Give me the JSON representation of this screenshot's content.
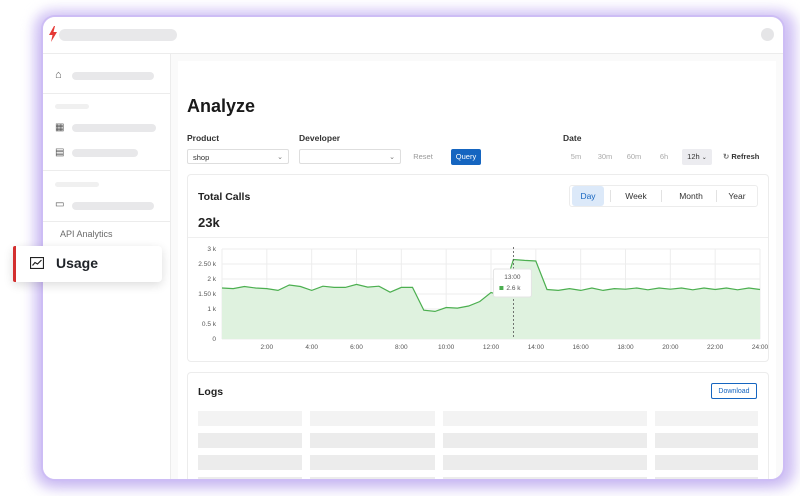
{
  "sidebar": {
    "section_label": "API Analytics",
    "usage_label": "Usage"
  },
  "page": {
    "title": "Analyze"
  },
  "filters": {
    "product_label": "Product",
    "product_value": "shop",
    "developer_label": "Developer",
    "developer_value": "",
    "reset_label": "Reset",
    "query_label": "Query",
    "date_label": "Date",
    "ranges": [
      "5m",
      "30m",
      "60m",
      "6h",
      "12h"
    ],
    "active_range": "12h",
    "refresh_label": "Refresh"
  },
  "total_calls": {
    "title": "Total Calls",
    "value": "23k",
    "periods": [
      "Day",
      "Week",
      "Month",
      "Year"
    ],
    "active_period": "Day",
    "tooltip_time": "13:00",
    "tooltip_value": "2.6 k"
  },
  "chart_data": {
    "type": "area",
    "y_ticks": [
      "0",
      "0.5 k",
      "1 k",
      "1.50 k",
      "2 k",
      "2.50 k",
      "3 k"
    ],
    "ylim": [
      0,
      3000
    ],
    "x_ticks": [
      "2:00",
      "4:00",
      "6:00",
      "8:00",
      "10:00",
      "12:00",
      "14:00",
      "16:00",
      "18:00",
      "20:00",
      "22:00",
      "24:00"
    ],
    "xlim": [
      0,
      24
    ],
    "grid": true,
    "color": "#4caf50",
    "x": [
      0,
      0.5,
      1,
      1.5,
      2,
      2.5,
      3,
      3.5,
      4,
      4.5,
      5,
      5.5,
      6,
      6.5,
      7,
      7.5,
      8,
      8.5,
      9,
      9.5,
      10,
      10.5,
      11,
      11.5,
      12,
      12.5,
      13,
      13.5,
      14,
      14.5,
      15,
      15.5,
      16,
      16.5,
      17,
      17.5,
      18,
      18.5,
      19,
      19.5,
      20,
      20.5,
      21,
      21.5,
      22,
      22.5,
      23,
      23.5,
      24
    ],
    "y": [
      1700,
      1680,
      1750,
      1700,
      1680,
      1620,
      1800,
      1750,
      1620,
      1760,
      1720,
      1720,
      1820,
      1730,
      1760,
      1560,
      1720,
      1720,
      960,
      920,
      1050,
      1030,
      1100,
      1250,
      1550,
      1450,
      2650,
      2620,
      2600,
      1650,
      1620,
      1680,
      1620,
      1700,
      1620,
      1680,
      1660,
      1700,
      1640,
      1700,
      1660,
      1700,
      1640,
      1700,
      1650,
      1700,
      1640,
      1700,
      1650
    ],
    "tooltip_x": 13
  },
  "logs": {
    "title": "Logs",
    "download_label": "Download"
  },
  "colors": {
    "accent": "#1565c0",
    "active_marker": "#d32f2f",
    "series": "#4caf50"
  }
}
